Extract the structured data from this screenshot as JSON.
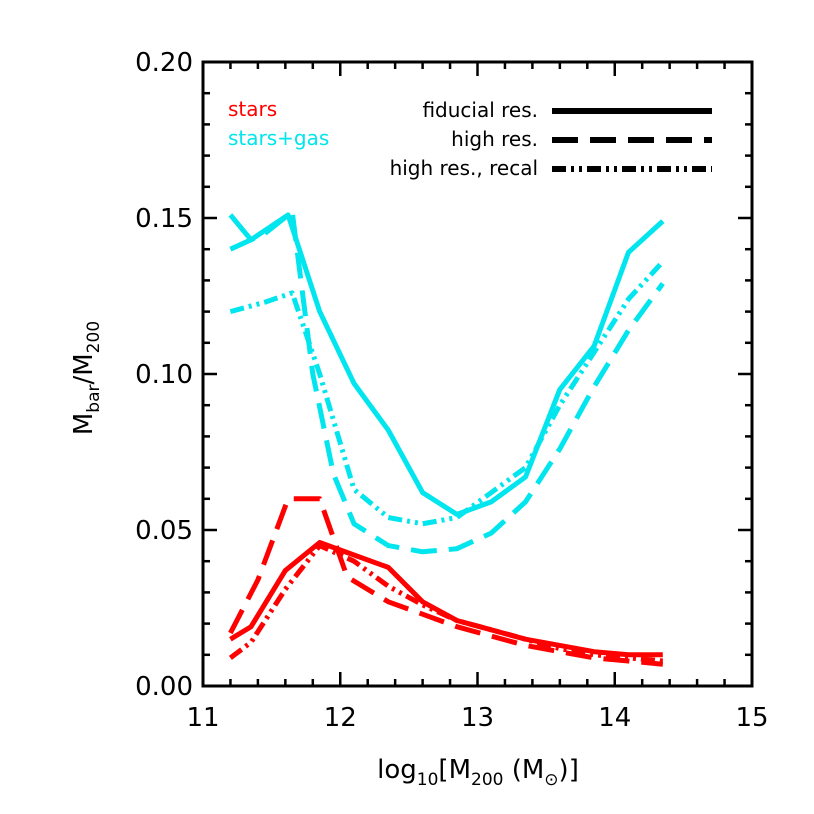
{
  "chart_data": {
    "type": "line",
    "xlabel": {
      "prefix": "log",
      "sub": "10",
      "open": "[M",
      "sub2": "200",
      "mid": " (M",
      "sun": "⊙",
      "close": ")]"
    },
    "ylabel": {
      "main": "M",
      "sub1": "bar",
      "slash": "/M",
      "sub2": "200"
    },
    "xlim": [
      11,
      15
    ],
    "ylim": [
      0,
      0.2
    ],
    "xticks": [
      11,
      12,
      13,
      14,
      15
    ],
    "xtick_labels": [
      "11",
      "12",
      "13",
      "14",
      "15"
    ],
    "yticks": [
      0,
      0.05,
      0.1,
      0.15,
      0.2
    ],
    "ytick_labels": [
      "0.00",
      "0.05",
      "0.10",
      "0.15",
      "0.20"
    ],
    "grid": false,
    "legend_position": "top",
    "legend": {
      "colors": [
        {
          "label": "stars",
          "color": "#ff0000"
        },
        {
          "label": "stars+gas",
          "color": "#00e5ee"
        }
      ],
      "styles": [
        {
          "label": "fiducial res.",
          "dash": "solid"
        },
        {
          "label": "high res.",
          "dash": "dash"
        },
        {
          "label": "high res., recal",
          "dash": "dashdot"
        }
      ]
    },
    "series": [
      {
        "component": "stars+gas",
        "resolution": "fiducial res.",
        "color": "#00e5ee",
        "dash": "solid",
        "x": [
          11.2,
          11.35,
          11.62,
          11.85,
          12.1,
          12.35,
          12.6,
          12.85,
          13.1,
          13.35,
          13.6,
          13.85,
          14.1,
          14.35
        ],
        "y": [
          0.151,
          0.143,
          0.151,
          0.12,
          0.097,
          0.082,
          0.062,
          0.055,
          0.059,
          0.067,
          0.095,
          0.109,
          0.139,
          0.149
        ]
      },
      {
        "component": "stars+gas",
        "resolution": "high res.",
        "color": "#00e5ee",
        "dash": "dash",
        "x": [
          11.2,
          11.45,
          11.65,
          11.8,
          11.95,
          12.1,
          12.35,
          12.6,
          12.85,
          13.1,
          13.35,
          13.6,
          13.85,
          14.1,
          14.35
        ],
        "y": [
          0.14,
          0.145,
          0.152,
          0.1,
          0.068,
          0.052,
          0.045,
          0.043,
          0.044,
          0.049,
          0.059,
          0.076,
          0.096,
          0.114,
          0.129
        ]
      },
      {
        "component": "stars+gas",
        "resolution": "high res., recal",
        "color": "#00e5ee",
        "dash": "dashdot",
        "x": [
          11.2,
          11.45,
          11.65,
          11.85,
          12.1,
          12.35,
          12.6,
          12.85,
          13.1,
          13.35,
          13.6,
          13.85,
          14.1,
          14.35
        ],
        "y": [
          0.12,
          0.123,
          0.126,
          0.1,
          0.063,
          0.054,
          0.052,
          0.054,
          0.062,
          0.07,
          0.09,
          0.107,
          0.124,
          0.136
        ]
      },
      {
        "component": "stars",
        "resolution": "fiducial res.",
        "color": "#ff0000",
        "dash": "solid",
        "x": [
          11.2,
          11.35,
          11.6,
          11.85,
          12.1,
          12.35,
          12.6,
          12.85,
          13.1,
          13.35,
          13.6,
          13.85,
          14.1,
          14.35
        ],
        "y": [
          0.015,
          0.019,
          0.037,
          0.046,
          0.042,
          0.038,
          0.027,
          0.021,
          0.018,
          0.015,
          0.013,
          0.011,
          0.01,
          0.01
        ]
      },
      {
        "component": "stars",
        "resolution": "high res.",
        "color": "#ff0000",
        "dash": "dash",
        "x": [
          11.2,
          11.4,
          11.62,
          11.85,
          12.05,
          12.35,
          12.6,
          12.85,
          13.1,
          13.35,
          13.6,
          13.85,
          14.1,
          14.35
        ],
        "y": [
          0.017,
          0.034,
          0.06,
          0.06,
          0.035,
          0.027,
          0.023,
          0.019,
          0.016,
          0.013,
          0.011,
          0.009,
          0.008,
          0.007
        ]
      },
      {
        "component": "stars",
        "resolution": "high res., recal",
        "color": "#ff0000",
        "dash": "dashdot",
        "x": [
          11.2,
          11.35,
          11.6,
          11.85,
          12.1,
          12.35,
          12.6,
          12.85,
          13.1,
          13.35,
          13.6,
          13.85,
          14.1,
          14.35
        ],
        "y": [
          0.009,
          0.014,
          0.031,
          0.045,
          0.04,
          0.032,
          0.026,
          0.021,
          0.018,
          0.015,
          0.012,
          0.01,
          0.009,
          0.008
        ]
      }
    ]
  }
}
